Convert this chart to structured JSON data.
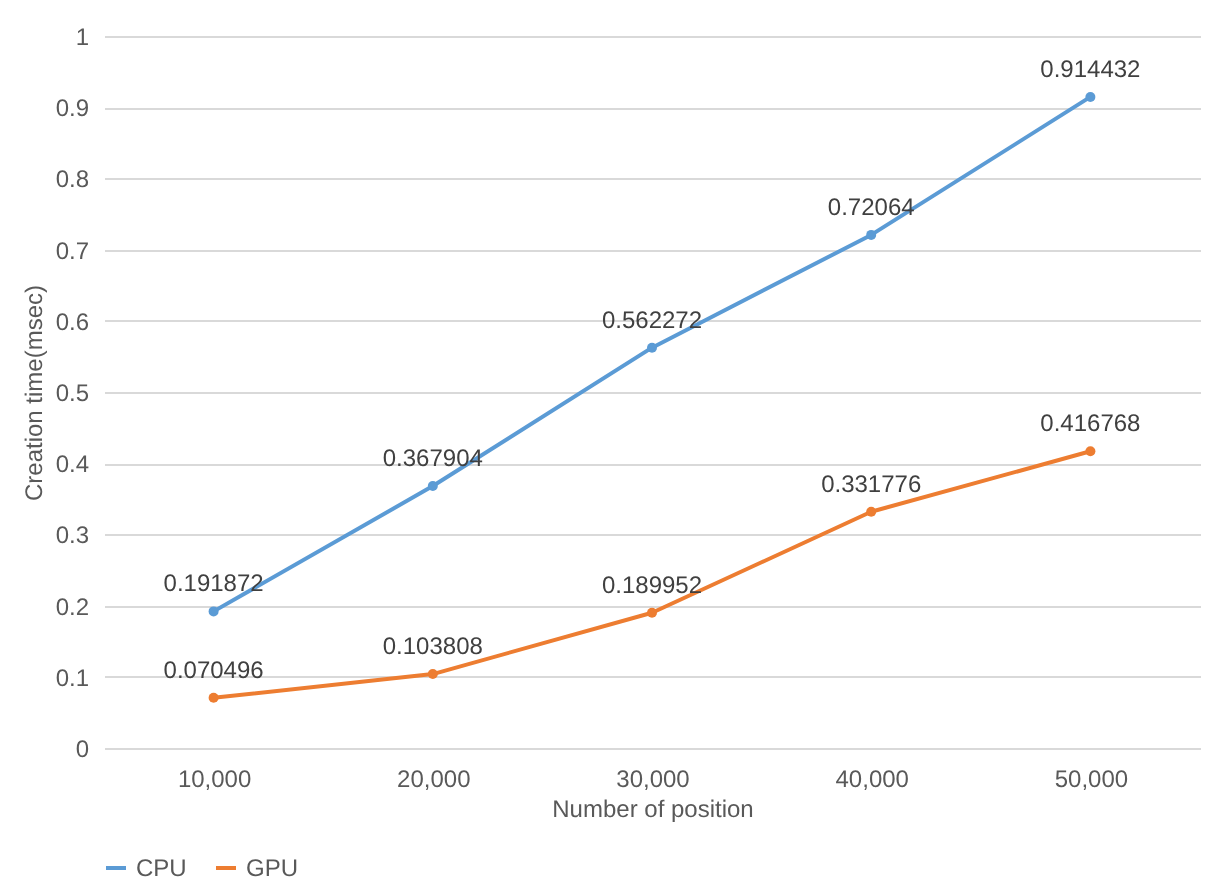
{
  "chart_data": {
    "type": "line",
    "xlabel": "Number of position",
    "ylabel": "Creation time(msec)",
    "categories": [
      "10,000",
      "20,000",
      "30,000",
      "40,000",
      "50,000"
    ],
    "series": [
      {
        "name": "CPU",
        "color": "#5b9bd5",
        "values": [
          0.191872,
          0.367904,
          0.562272,
          0.72064,
          0.914432
        ]
      },
      {
        "name": "GPU",
        "color": "#ed7d31",
        "values": [
          0.070496,
          0.103808,
          0.189952,
          0.331776,
          0.416768
        ]
      }
    ],
    "ylim": [
      0,
      1
    ],
    "yticks": [
      0,
      0.1,
      0.2,
      0.3,
      0.4,
      0.5,
      0.6,
      0.7,
      0.8,
      0.9,
      1
    ],
    "grid": "y",
    "legend": "bottom",
    "marker": "circle",
    "line_style": "solid",
    "data_labels": true
  }
}
